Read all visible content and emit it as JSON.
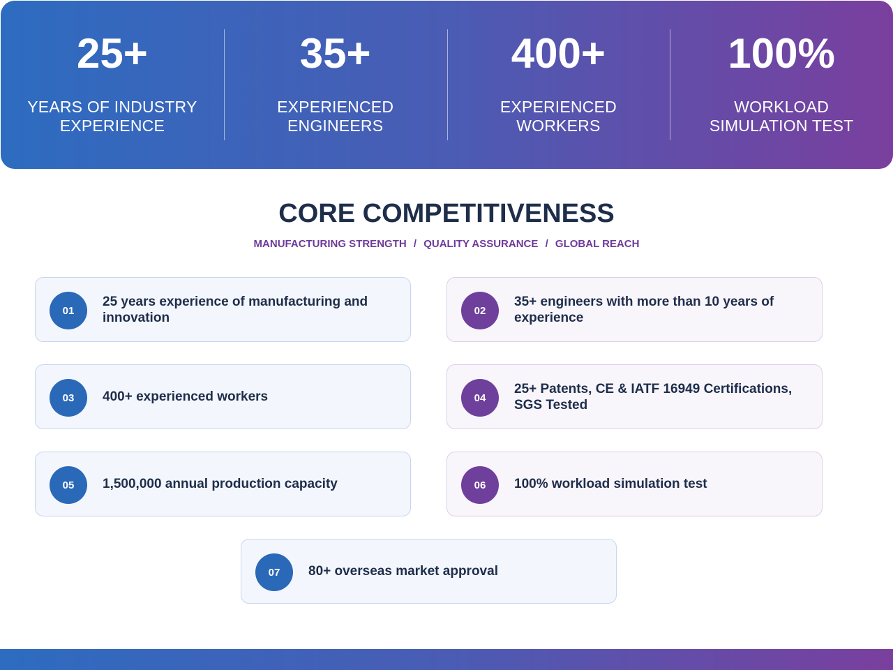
{
  "stats": [
    {
      "value": "25+",
      "label_line1": "YEARS OF INDUSTRY",
      "label_line2": "EXPERIENCE"
    },
    {
      "value": "35+",
      "label_line1": "EXPERIENCED",
      "label_line2": "ENGINEERS"
    },
    {
      "value": "400+",
      "label_line1": "EXPERIENCED",
      "label_line2": "WORKERS"
    },
    {
      "value": "100%",
      "label_line1": "WORKLOAD",
      "label_line2": "SIMULATION TEST"
    }
  ],
  "section": {
    "title": "CORE COMPETITIVENESS",
    "subtitle_parts": [
      "MANUFACTURING STRENGTH",
      "QUALITY ASSURANCE",
      "GLOBAL REACH"
    ],
    "separator": "/"
  },
  "cards": [
    {
      "number": "01",
      "text": "25 years experience of manufacturing and innovation",
      "accent": "#2a68b8"
    },
    {
      "number": "02",
      "text": "35+ engineers with more than 10 years of experience",
      "accent": "#6f3f9c"
    },
    {
      "number": "03",
      "text": "400+ experienced workers",
      "accent": "#2a68b8"
    },
    {
      "number": "04",
      "text": "25+ Patents, CE & IATF 16949 Certifications, SGS Tested",
      "accent": "#6f3f9c"
    },
    {
      "number": "05",
      "text": "1,500,000 annual production capacity",
      "accent": "#2a68b8"
    },
    {
      "number": "06",
      "text": "100% workload simulation test",
      "accent": "#6f3f9c"
    },
    {
      "number": "07",
      "text": "80+ overseas market approval",
      "accent": "#2a68b8"
    }
  ],
  "colors": {
    "gradient_start": "#2d6cc0",
    "gradient_end": "#7a3f9e",
    "title": "#1e2e4a",
    "subtitle": "#6e3a9a"
  }
}
